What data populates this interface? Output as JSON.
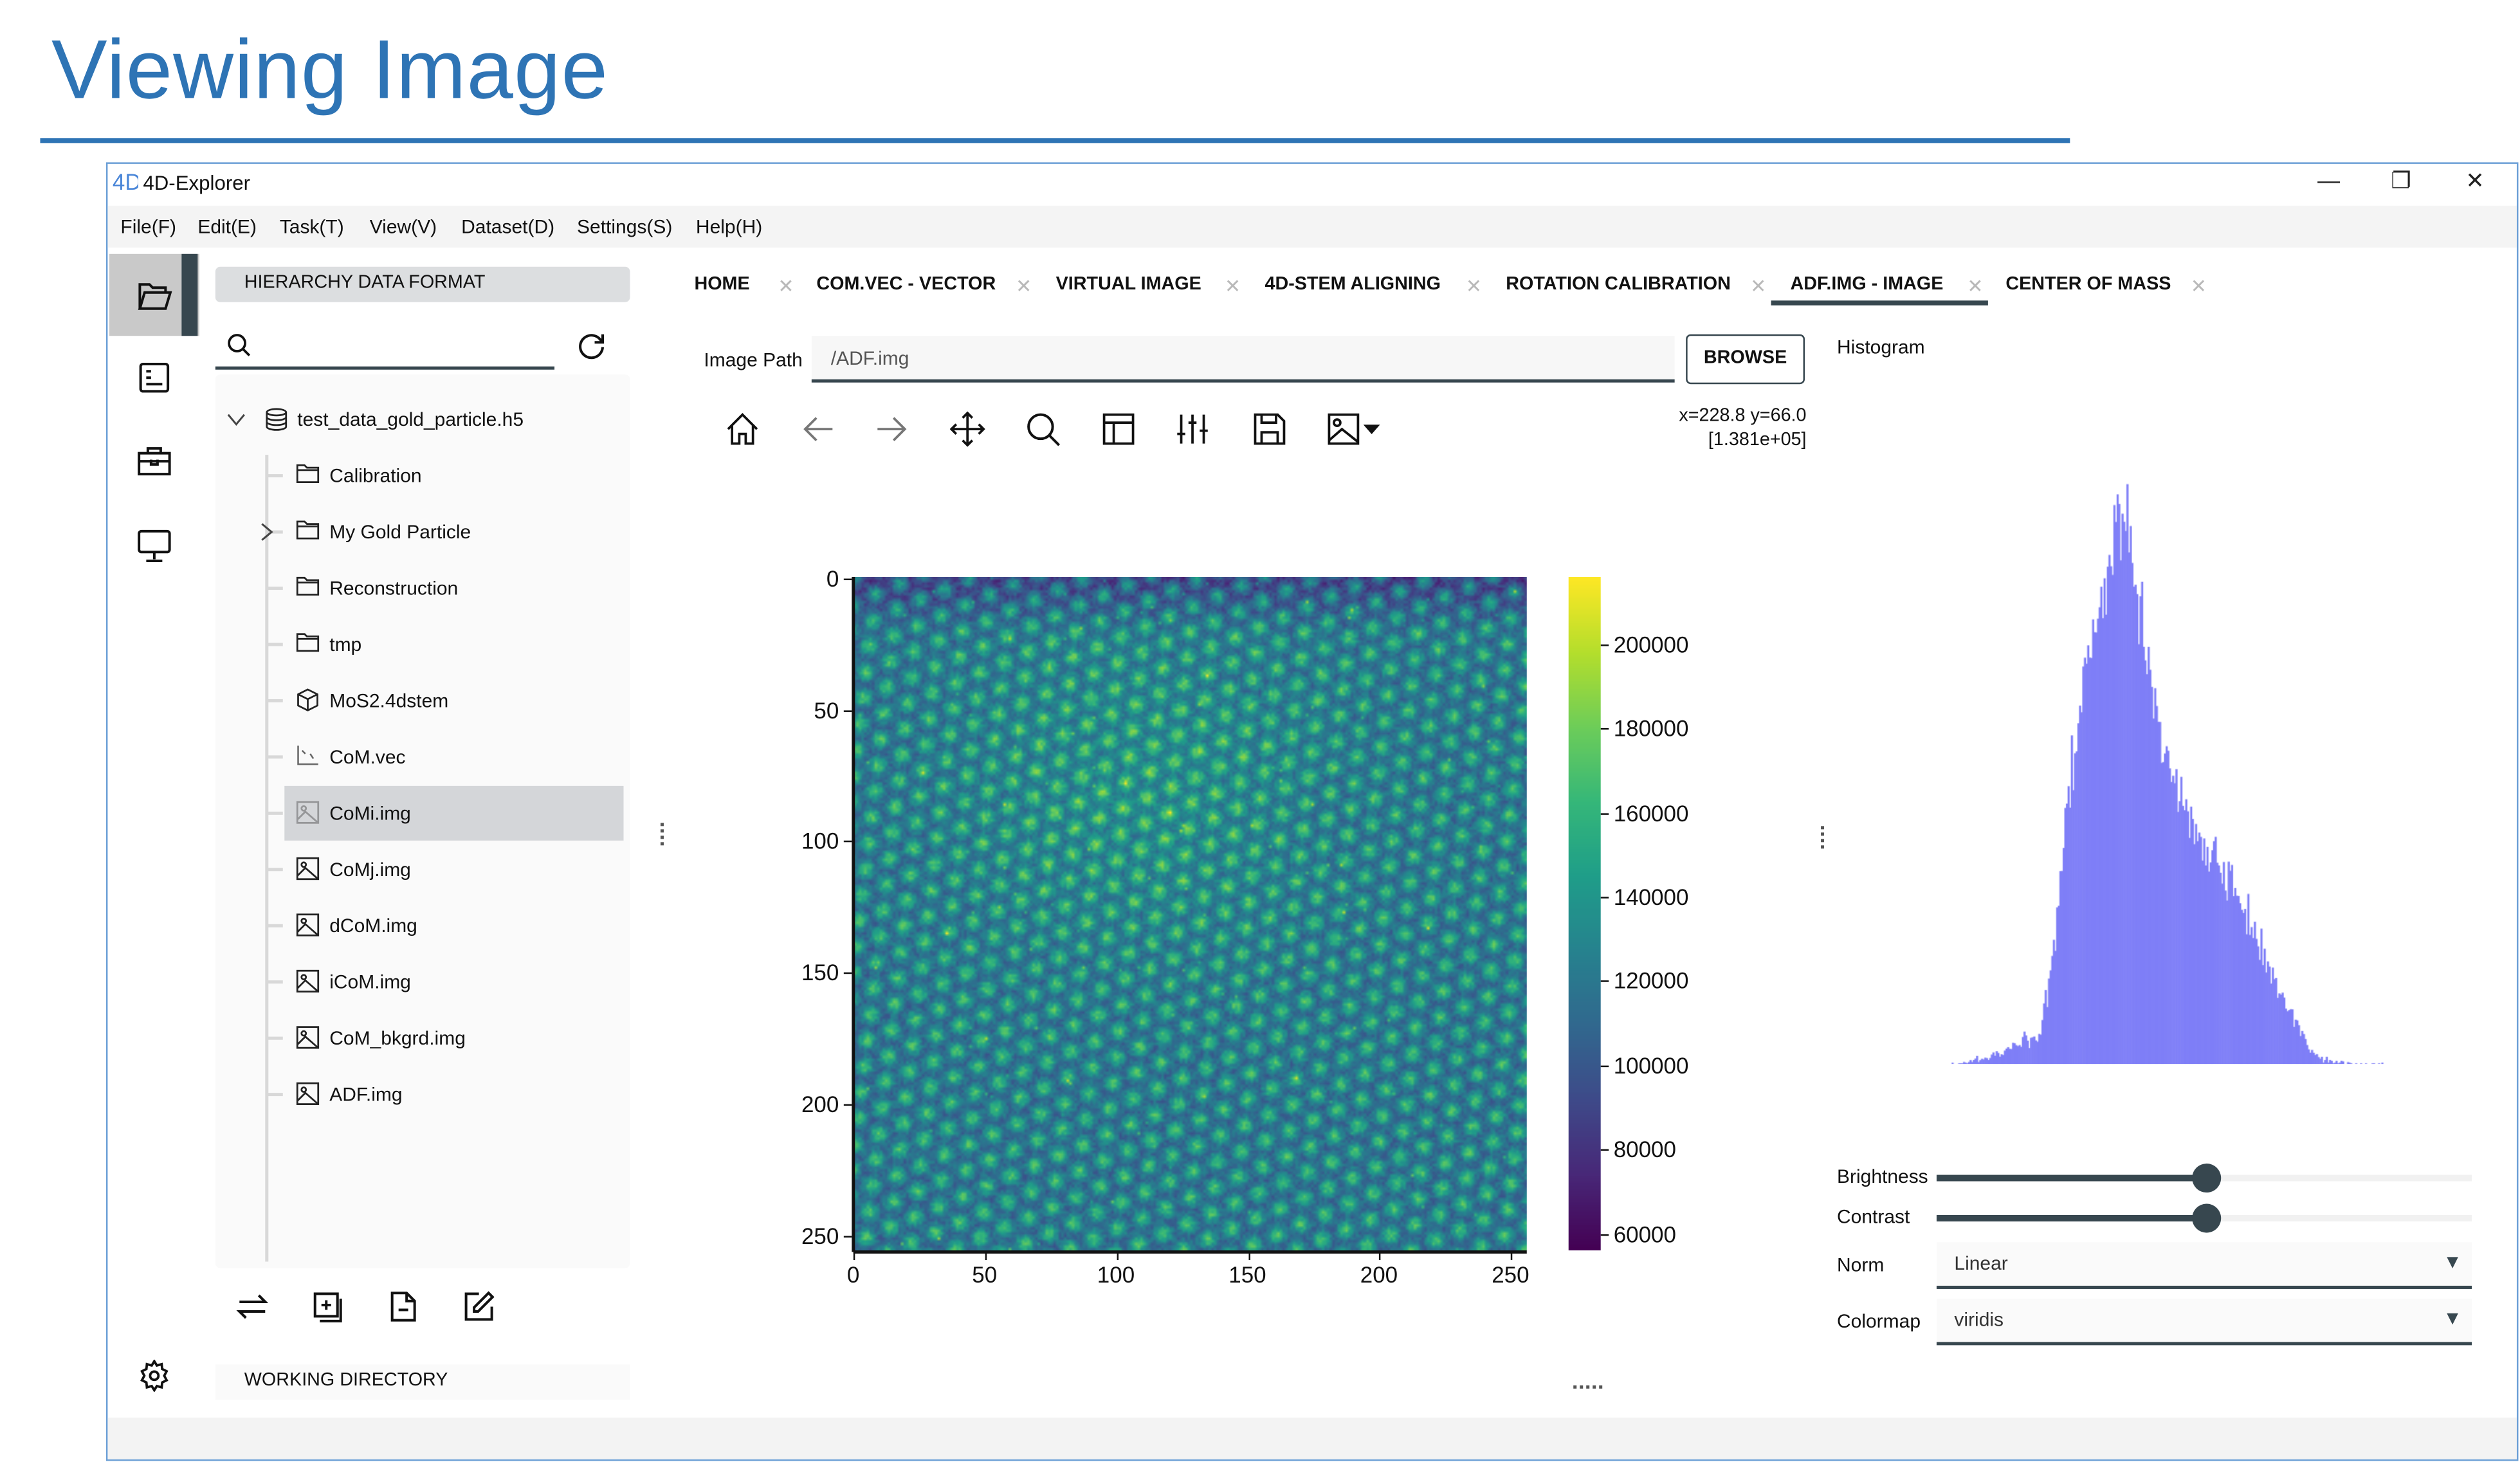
{
  "slide": {
    "title": "Viewing Image",
    "accent_color": "#2e74b5"
  },
  "window": {
    "title": "4D-Explorer",
    "controls": {
      "minimize": "—",
      "restore": "❐",
      "close": "✕"
    }
  },
  "menu": [
    "File(F)",
    "Edit(E)",
    "Task(T)",
    "View(V)",
    "Dataset(D)",
    "Settings(S)",
    "Help(H)"
  ],
  "rail": {
    "items": [
      "folder-open-icon",
      "document-list-icon",
      "toolbox-icon",
      "monitor-icon"
    ],
    "active": 0,
    "settings": "gear-icon"
  },
  "left_panel": {
    "header": "HIERARCHY DATA FORMAT",
    "search": {
      "value": "",
      "placeholder": ""
    },
    "tree": [
      {
        "label": "test_data_gold_particle.h5",
        "icon": "database-icon",
        "level": 0,
        "expander": "expanded"
      },
      {
        "label": "Calibration",
        "icon": "folder-icon",
        "level": 1
      },
      {
        "label": "My Gold Particle",
        "icon": "folder-icon",
        "level": 1,
        "expander": "collapsed"
      },
      {
        "label": "Reconstruction",
        "icon": "folder-icon",
        "level": 1
      },
      {
        "label": "tmp",
        "icon": "folder-icon",
        "level": 1
      },
      {
        "label": "MoS2.4dstem",
        "icon": "cube-icon",
        "level": 1
      },
      {
        "label": "CoM.vec",
        "icon": "vector-icon",
        "level": 1
      },
      {
        "label": "CoMi.img",
        "icon": "image-icon",
        "level": 1,
        "selected": true
      },
      {
        "label": "CoMj.img",
        "icon": "image-icon",
        "level": 1
      },
      {
        "label": "dCoM.img",
        "icon": "image-icon",
        "level": 1
      },
      {
        "label": "iCoM.img",
        "icon": "image-icon",
        "level": 1
      },
      {
        "label": "CoM_bkgrd.img",
        "icon": "image-icon",
        "level": 1
      },
      {
        "label": "ADF.img",
        "icon": "image-icon",
        "level": 1
      }
    ],
    "actions": [
      "swap-icon",
      "add-file-icon",
      "remove-file-icon",
      "edit-icon"
    ],
    "working_directory": "WORKING DIRECTORY"
  },
  "tabs": [
    {
      "label": "HOME"
    },
    {
      "label": "COM.VEC - VECTOR"
    },
    {
      "label": "VIRTUAL IMAGE"
    },
    {
      "label": "4D-STEM ALIGNING"
    },
    {
      "label": "ROTATION CALIBRATION"
    },
    {
      "label": "ADF.IMG - IMAGE",
      "active": true
    },
    {
      "label": "CENTER OF MASS"
    }
  ],
  "image_view": {
    "path_label": "Image Path",
    "path_value": "/ADF.img",
    "browse_label": "BROWSE",
    "toolbar": [
      "home-icon",
      "back-arrow-icon",
      "forward-arrow-icon",
      "pan-icon",
      "zoom-icon",
      "subplots-icon",
      "adjust-icon",
      "save-icon",
      "image-options-icon"
    ],
    "cursor_readout": {
      "position": "x=228.8 y=66.0",
      "value": "[1.381e+05]"
    },
    "plot": {
      "x_ticks": [
        "0",
        "50",
        "100",
        "150",
        "200",
        "250"
      ],
      "y_ticks": [
        "0",
        "50",
        "100",
        "150",
        "200",
        "250"
      ],
      "x_range": [
        0,
        256
      ],
      "y_range": [
        0,
        256
      ],
      "colorbar_ticks": [
        "200000",
        "180000",
        "160000",
        "140000",
        "120000",
        "100000",
        "80000",
        "60000"
      ],
      "colorbar_range": [
        56000,
        216000
      ],
      "colormap": "viridis"
    }
  },
  "side_panel": {
    "histogram_label": "Histogram",
    "histogram_color": "#7f7ff7",
    "brightness": {
      "label": "Brightness",
      "value": 0.505
    },
    "contrast": {
      "label": "Contrast",
      "value": 0.505
    },
    "norm": {
      "label": "Norm",
      "value": "Linear"
    },
    "colormap": {
      "label": "Colormap",
      "value": "viridis"
    },
    "dropdown_arrow": "▼"
  },
  "colors": {
    "dark": "#37474f",
    "window_border": "#6b9fd6",
    "selected_row": "#d4d6d9"
  }
}
